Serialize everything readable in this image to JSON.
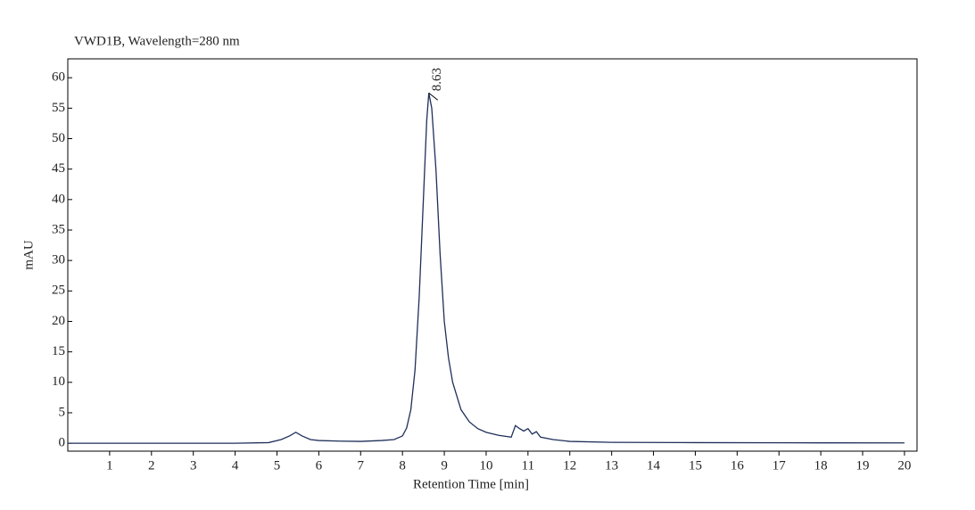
{
  "chart_data": {
    "type": "line",
    "title": "VWD1B, Wavelength=280 nm",
    "x_label": "Retention Time [min]",
    "y_label": "mAU",
    "x": [
      0,
      2,
      4,
      4.8,
      5.1,
      5.3,
      5.45,
      5.6,
      5.8,
      6.0,
      6.5,
      7.0,
      7.5,
      7.8,
      8.0,
      8.1,
      8.2,
      8.3,
      8.4,
      8.5,
      8.58,
      8.63,
      8.7,
      8.8,
      8.9,
      9.0,
      9.1,
      9.2,
      9.4,
      9.6,
      9.8,
      10.0,
      10.3,
      10.6,
      10.7,
      10.8,
      10.9,
      11.0,
      11.1,
      11.2,
      11.3,
      11.6,
      12.0,
      13.0,
      15.0,
      18.0,
      20.0
    ],
    "series": [
      {
        "name": "VWD1B",
        "color": "#1f2f5a",
        "values": [
          0,
          0,
          0,
          0.1,
          0.6,
          1.2,
          1.8,
          1.2,
          0.6,
          0.45,
          0.35,
          0.3,
          0.45,
          0.6,
          1.2,
          2.5,
          5.5,
          12,
          24,
          40,
          53,
          57.5,
          55,
          45,
          31,
          20,
          14,
          10,
          5.5,
          3.5,
          2.4,
          1.8,
          1.3,
          1.0,
          2.9,
          2.4,
          2.0,
          2.4,
          1.5,
          1.9,
          1.0,
          0.6,
          0.3,
          0.15,
          0.1,
          0.06,
          0.05
        ]
      }
    ],
    "annotations": [
      {
        "text": "8.63",
        "x": 8.63,
        "y": 57.5
      }
    ],
    "xlim": [
      0,
      20.3
    ],
    "ylim": [
      -1.3,
      63.1
    ],
    "xticks": [
      1,
      2,
      3,
      4,
      5,
      6,
      7,
      8,
      9,
      10,
      11,
      12,
      13,
      14,
      15,
      16,
      17,
      18,
      19,
      20
    ],
    "yticks": [
      0,
      5,
      10,
      15,
      20,
      25,
      30,
      35,
      40,
      45,
      50,
      55,
      60
    ]
  }
}
